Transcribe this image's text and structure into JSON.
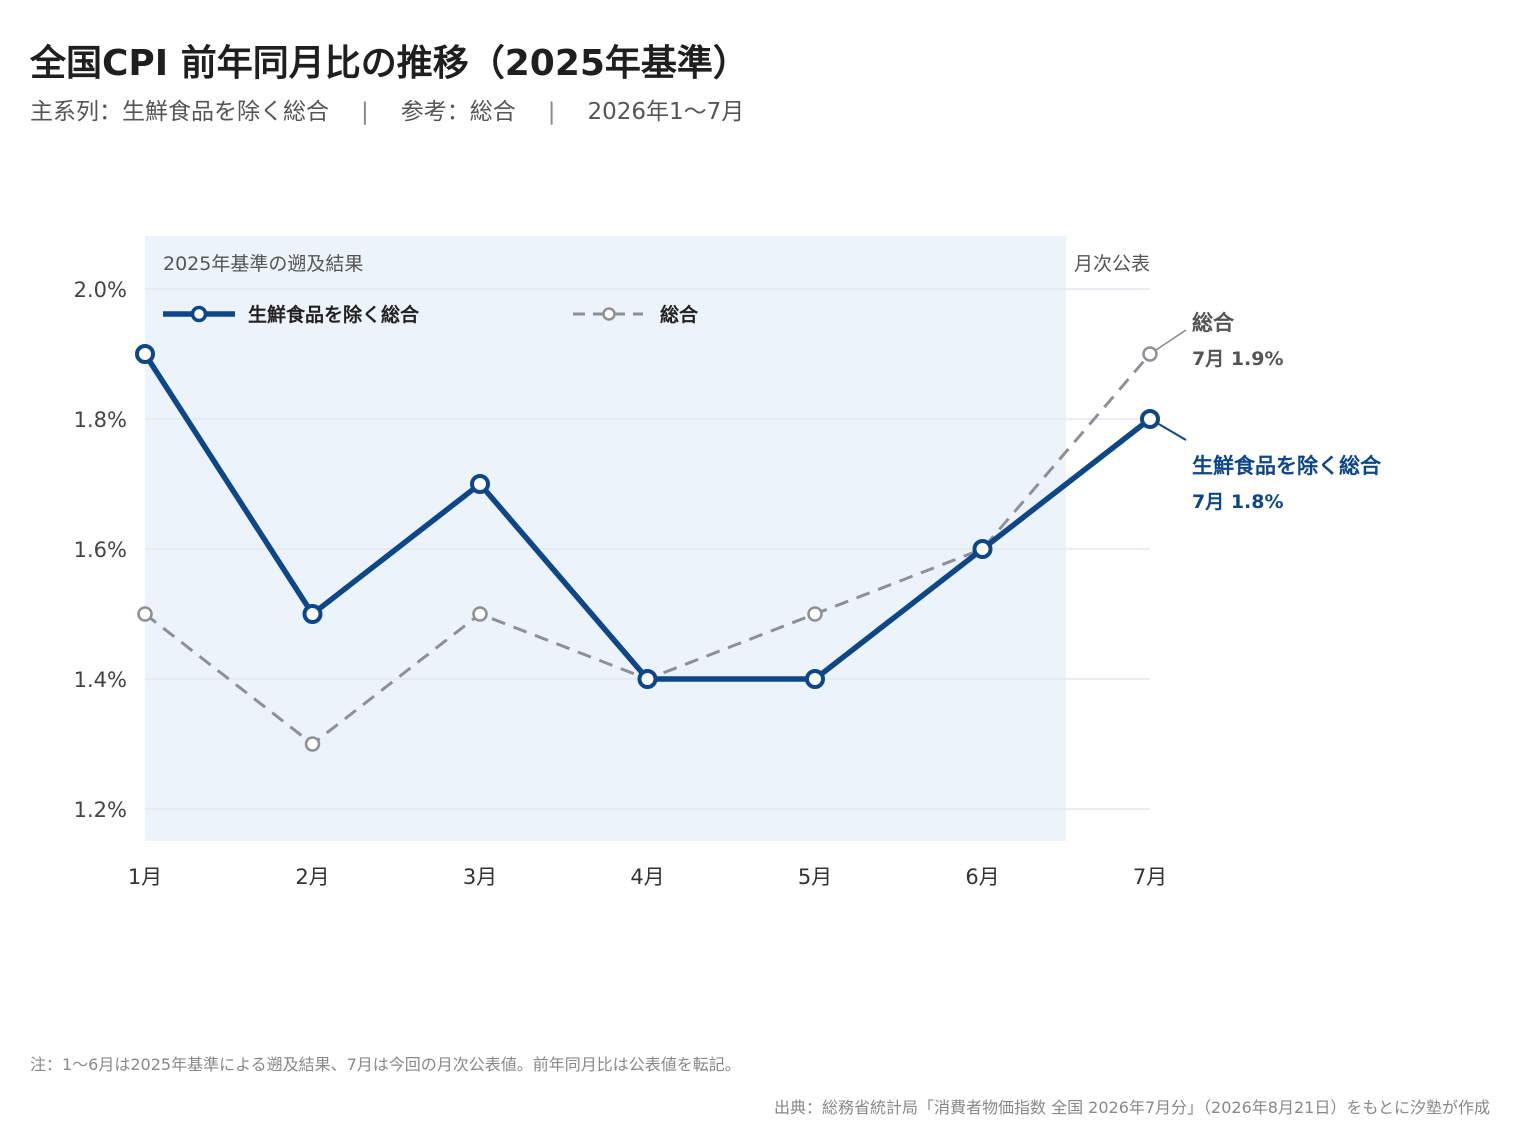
{
  "header": {
    "title": "全国CPI 前年同月比の推移（2025年基準）",
    "subtitle_main": "主系列：生鮮食品を除く総合",
    "subtitle_ref": "参考：総合",
    "subtitle_period": "2026年1〜7月",
    "separator": "|"
  },
  "chart_data": {
    "type": "line",
    "title": "全国CPI 前年同月比の推移（2025年基準）",
    "categories": [
      "1月",
      "2月",
      "3月",
      "4月",
      "5月",
      "6月",
      "7月"
    ],
    "series": [
      {
        "name": "生鮮食品を除く総合",
        "values": [
          1.9,
          1.5,
          1.7,
          1.4,
          1.4,
          1.6,
          1.8
        ],
        "color": "#0d4689",
        "style": "solid"
      },
      {
        "name": "総合",
        "values": [
          1.5,
          1.3,
          1.5,
          1.4,
          1.5,
          1.6,
          1.9
        ],
        "color": "#8e8f97",
        "style": "dashed"
      }
    ],
    "ylim": [
      1.15,
      2.05
    ],
    "yticks": [
      1.2,
      1.4,
      1.6,
      1.8,
      2.0
    ],
    "ytick_labels": [
      "1.2%",
      "1.4%",
      "1.6%",
      "1.8%",
      "2.0%"
    ],
    "grid": true,
    "legend": "top-left",
    "shaded_region": {
      "from": "1月",
      "to": "6月",
      "label": "2025年基準の遡及結果",
      "color": "#edf3fb"
    },
    "unshaded_label": "月次公表",
    "end_labels": [
      {
        "series": "総合",
        "name": "総合",
        "value_text": "7月 1.9%"
      },
      {
        "series": "生鮮食品を除く総合",
        "name": "生鮮食品を除く総合",
        "value_text": "7月 1.8%"
      }
    ]
  },
  "footer": {
    "note": "注：1〜6月は2025年基準による遡及結果、7月は今回の月次公表値。前年同月比は公表値を転記。",
    "source": "出典：総務省統計局「消費者物価指数 全国 2026年7月分」（2026年8月21日）をもとに汐塾が作成"
  }
}
